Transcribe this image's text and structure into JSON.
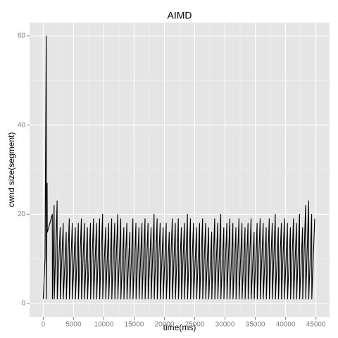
{
  "chart_data": {
    "type": "line",
    "title": "AIMD",
    "x_label": "time(ms)",
    "y_label": "cwnd size(segment)",
    "xlim": [
      -2250,
      47250
    ],
    "ylim": [
      -3,
      63
    ],
    "xticks": [
      0,
      5000,
      10000,
      15000,
      20000,
      25000,
      30000,
      35000,
      40000,
      45000
    ],
    "yticks": [
      0,
      20,
      40,
      60
    ],
    "grid": true,
    "series": [
      {
        "color": "#000000",
        "x": [
          0,
          300,
          500,
          520,
          650,
          670,
          900,
          1500,
          1520,
          1800,
          1820,
          2300,
          2320,
          2800,
          2820,
          3300,
          3320,
          3800,
          3820,
          4300,
          4320,
          4800,
          4820,
          5300,
          5320,
          5800,
          5820,
          6300,
          6320,
          6800,
          6820,
          7300,
          7320,
          7800,
          7820,
          8300,
          8320,
          8800,
          8820,
          9300,
          9320,
          9800,
          9820,
          10300,
          10320,
          10800,
          10820,
          11300,
          11320,
          11800,
          11820,
          12300,
          12320,
          12800,
          12820,
          13300,
          13320,
          13800,
          13820,
          14300,
          14320,
          14800,
          14820,
          15300,
          15320,
          15800,
          15820,
          16300,
          16320,
          16800,
          16820,
          17300,
          17320,
          17800,
          17820,
          18300,
          18320,
          18800,
          18820,
          19300,
          19320,
          19800,
          19820,
          20300,
          20320,
          20800,
          20820,
          21300,
          21320,
          21800,
          21820,
          22300,
          22320,
          22800,
          22820,
          23300,
          23320,
          23800,
          23820,
          24300,
          24320,
          24800,
          24820,
          25300,
          25320,
          25800,
          25820,
          26300,
          26320,
          26800,
          26820,
          27300,
          27320,
          27800,
          27820,
          28300,
          28320,
          28800,
          28820,
          29300,
          29320,
          29800,
          29820,
          30300,
          30320,
          30800,
          30820,
          31300,
          31320,
          31800,
          31820,
          32300,
          32320,
          32800,
          32820,
          33300,
          33320,
          33800,
          33820,
          34300,
          34320,
          34800,
          34820,
          35300,
          35320,
          35800,
          35820,
          36300,
          36320,
          36800,
          36820,
          37300,
          37320,
          37800,
          37820,
          38300,
          38320,
          38800,
          38820,
          39300,
          39320,
          39800,
          39820,
          40300,
          40320,
          40800,
          40820,
          41300,
          41320,
          41800,
          41820,
          42300,
          42320,
          42800,
          42820,
          43300,
          43320,
          43800,
          43820,
          44300,
          44320,
          44800
        ],
        "values": [
          1,
          10,
          60,
          1,
          27,
          16,
          17,
          20,
          1,
          22,
          1,
          23,
          1,
          17,
          1,
          18,
          1,
          16,
          1,
          19,
          1,
          18,
          1,
          17,
          1,
          18,
          1,
          19,
          1,
          18,
          1,
          17,
          1,
          18,
          1,
          19,
          1,
          18,
          1,
          19,
          1,
          20,
          1,
          17,
          1,
          18,
          1,
          19,
          1,
          18,
          1,
          20,
          1,
          19,
          1,
          17,
          1,
          18,
          1,
          16,
          1,
          19,
          1,
          18,
          1,
          17,
          1,
          18,
          1,
          19,
          1,
          18,
          1,
          17,
          1,
          20,
          1,
          19,
          1,
          18,
          1,
          17,
          1,
          18,
          1,
          16,
          1,
          19,
          1,
          18,
          1,
          19,
          1,
          17,
          1,
          18,
          1,
          20,
          1,
          19,
          1,
          18,
          1,
          17,
          1,
          18,
          1,
          19,
          1,
          18,
          1,
          17,
          1,
          16,
          1,
          19,
          1,
          18,
          1,
          20,
          1,
          17,
          1,
          18,
          1,
          19,
          1,
          18,
          1,
          17,
          1,
          19,
          1,
          18,
          1,
          17,
          1,
          18,
          1,
          19,
          1,
          16,
          1,
          18,
          1,
          19,
          1,
          18,
          1,
          17,
          1,
          19,
          1,
          18,
          1,
          20,
          1,
          17,
          1,
          18,
          1,
          19,
          1,
          18,
          1,
          17,
          1,
          19,
          1,
          18,
          1,
          20,
          1,
          17,
          1,
          22,
          1,
          23,
          1,
          20,
          1,
          19
        ]
      }
    ]
  }
}
